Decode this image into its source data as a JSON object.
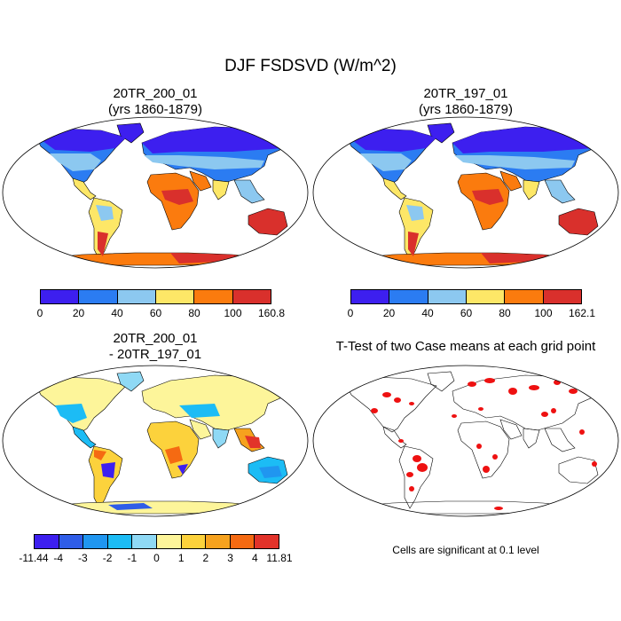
{
  "title": "DJF FSDSVD (W/m^2)",
  "panels": {
    "p1": {
      "line1": "20TR_200_01",
      "line2": "(yrs 1860-1879)"
    },
    "p2": {
      "line1": "20TR_197_01",
      "line2": "(yrs 1860-1879)"
    },
    "p3": {
      "line1": "20TR_200_01",
      "line2": "- 20TR_197_01"
    },
    "p4": {
      "line1": "T-Test of two Case means at each grid point"
    }
  },
  "colorbars": {
    "cb1": {
      "labels": [
        "0",
        "20",
        "40",
        "60",
        "80",
        "100",
        "160.8"
      ],
      "colors": [
        "#3d1fef",
        "#2b7cf2",
        "#8cc8f0",
        "#fde767",
        "#fb7b0e",
        "#d9302c"
      ]
    },
    "cb2": {
      "labels": [
        "0",
        "20",
        "40",
        "60",
        "80",
        "100",
        "162.1"
      ],
      "colors": [
        "#3d1fef",
        "#2b7cf2",
        "#8cc8f0",
        "#fde767",
        "#fb7b0e",
        "#d9302c"
      ]
    },
    "cb3": {
      "labels": [
        "-11.44",
        "-4",
        "-3",
        "-2",
        "-1",
        "0",
        "1",
        "2",
        "3",
        "4",
        "11.81"
      ],
      "colors": [
        "#3d1fef",
        "#2f5de8",
        "#2096f0",
        "#1cbcf5",
        "#8fd9f5",
        "#fdf59a",
        "#fcd23c",
        "#f6a21e",
        "#f56a12",
        "#e2332a"
      ]
    }
  },
  "note": "Cells are significant at 0.1 level",
  "map_colors": {
    "ocean": "#ffffff",
    "outline": "#000000",
    "significant": "#ee1111"
  }
}
